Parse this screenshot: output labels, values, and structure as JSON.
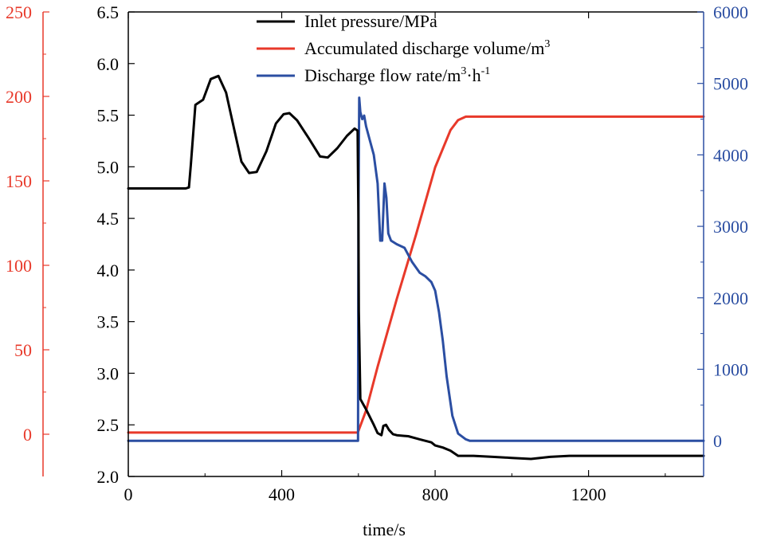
{
  "chart_data": {
    "type": "line",
    "title": "",
    "xlabel": "time/s",
    "xlim": [
      0,
      1500
    ],
    "x_ticks": [
      0,
      400,
      800,
      1200
    ],
    "x_tick_labels": [
      "0",
      "400",
      "800",
      "1200"
    ],
    "axes": [
      {
        "id": "pressure",
        "position": "left-inner",
        "color": "#000000",
        "ylim": [
          2.0,
          6.5
        ],
        "ticks": [
          2.0,
          2.5,
          3.0,
          3.5,
          4.0,
          4.5,
          5.0,
          5.5,
          6.0,
          6.5
        ],
        "tick_labels": [
          "2.0",
          "2.5",
          "3.0",
          "3.5",
          "4.0",
          "4.5",
          "5.0",
          "5.5",
          "6.0",
          "6.5"
        ]
      },
      {
        "id": "volume",
        "position": "left-outer",
        "color": "#e8392a",
        "ylim": [
          -25,
          250
        ],
        "ticks": [
          0,
          50,
          100,
          150,
          200,
          250
        ],
        "tick_labels": [
          "0",
          "50",
          "100",
          "150",
          "200",
          "250"
        ]
      },
      {
        "id": "flow",
        "position": "right",
        "color": "#2b4ea2",
        "ylim": [
          -500,
          6000
        ],
        "ticks": [
          0,
          1000,
          2000,
          3000,
          4000,
          5000,
          6000
        ],
        "tick_labels": [
          "0",
          "1000",
          "2000",
          "3000",
          "4000",
          "5000",
          "6000"
        ]
      }
    ],
    "legend_position": "top-center",
    "series": [
      {
        "name": "Inlet pressure/MPa",
        "axis": "pressure",
        "color": "#000000",
        "x": [
          0,
          150,
          158,
          163,
          175,
          195,
          215,
          235,
          255,
          275,
          295,
          315,
          335,
          360,
          385,
          405,
          420,
          440,
          470,
          500,
          520,
          545,
          570,
          590,
          598,
          600,
          601,
          605,
          620,
          640,
          650,
          660,
          665,
          672,
          680,
          690,
          700,
          730,
          760,
          790,
          800,
          820,
          840,
          860,
          900,
          950,
          1000,
          1050,
          1100,
          1150,
          1200,
          1250,
          1300,
          1350,
          1400,
          1450,
          1500
        ],
        "y": [
          4.79,
          4.79,
          4.8,
          5.02,
          5.6,
          5.65,
          5.85,
          5.88,
          5.72,
          5.38,
          5.05,
          4.94,
          4.95,
          5.15,
          5.42,
          5.51,
          5.52,
          5.45,
          5.28,
          5.1,
          5.09,
          5.18,
          5.3,
          5.37,
          5.35,
          4.5,
          3.6,
          2.75,
          2.65,
          2.5,
          2.42,
          2.4,
          2.49,
          2.5,
          2.45,
          2.41,
          2.4,
          2.39,
          2.36,
          2.33,
          2.3,
          2.28,
          2.25,
          2.2,
          2.2,
          2.19,
          2.18,
          2.17,
          2.19,
          2.2,
          2.2,
          2.2,
          2.2,
          2.2,
          2.2,
          2.2,
          2.2
        ]
      },
      {
        "name": "Accumulated discharge volume/m³",
        "axis": "volume",
        "color": "#e8392a",
        "x": [
          0,
          598,
          600,
          620,
          650,
          700,
          750,
          800,
          840,
          860,
          880,
          1500
        ],
        "y": [
          1,
          1,
          2,
          14,
          40,
          80,
          118,
          158,
          180,
          186,
          188,
          188
        ]
      },
      {
        "name": "Discharge flow rate/m³·h⁻¹",
        "axis": "flow",
        "color": "#2b4ea2",
        "x": [
          0,
          599,
          600,
          602,
          605,
          610,
          615,
          620,
          630,
          640,
          650,
          657,
          662,
          668,
          673,
          678,
          685,
          700,
          720,
          740,
          760,
          775,
          790,
          800,
          810,
          820,
          830,
          845,
          860,
          880,
          890,
          1500
        ],
        "y": [
          0,
          0,
          3000,
          4800,
          4600,
          4500,
          4550,
          4400,
          4200,
          4000,
          3600,
          2800,
          2800,
          3600,
          3400,
          2900,
          2800,
          2750,
          2700,
          2500,
          2350,
          2300,
          2220,
          2100,
          1800,
          1400,
          900,
          350,
          100,
          20,
          0,
          0
        ]
      }
    ]
  },
  "legend": {
    "items": [
      {
        "id": "pressure",
        "base": "Inlet pressure/MPa",
        "color": "#000000"
      },
      {
        "id": "volume",
        "base": "Accumulated discharge volume/m",
        "sup1": "3",
        "color": "#e8392a"
      },
      {
        "id": "flow",
        "base": "Discharge flow rate/m",
        "sup1": "3",
        "mid": "·h",
        "sup2": "-1",
        "color": "#2b4ea2"
      }
    ]
  }
}
